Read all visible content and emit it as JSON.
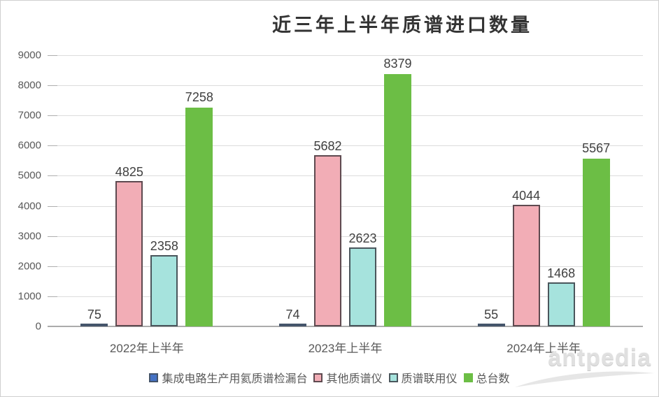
{
  "title": "近三年上半年质谱进口数量",
  "watermark": {
    "text": "antpedia"
  },
  "colors": {
    "grid": "#dcdcdc",
    "axis": "#ababab",
    "tick": "#aeaeae",
    "label_text": "#404040",
    "axis_text": "#595959",
    "title_text": "#333333",
    "watermark": "#e0e0e0"
  },
  "chart_data": {
    "type": "bar",
    "title": "近三年上半年质谱进口数量",
    "categories": [
      "2022年上半年",
      "2023年上半年",
      "2024年上半年"
    ],
    "series": [
      {
        "name": "集成电路生产用氦质谱检漏台",
        "values": [
          75,
          74,
          55
        ],
        "fill": "#4472c4",
        "border": "#44546a"
      },
      {
        "name": "其他质谱仪",
        "values": [
          4825,
          5682,
          4044
        ],
        "fill": "#f2adb6",
        "border": "#5e4a50"
      },
      {
        "name": "质谱联用仪",
        "values": [
          2358,
          2623,
          1468
        ],
        "fill": "#a6e3dd",
        "border": "#4a565c"
      },
      {
        "name": "总台数",
        "values": [
          7258,
          8379,
          5567
        ],
        "fill": "#6cbe45",
        "border": "#6cbe45"
      }
    ],
    "ylim": [
      0,
      9000
    ],
    "yticks": [
      0,
      1000,
      2000,
      3000,
      4000,
      5000,
      6000,
      7000,
      8000,
      9000
    ],
    "grid": true,
    "legend_position": "bottom",
    "data_labels": true
  }
}
